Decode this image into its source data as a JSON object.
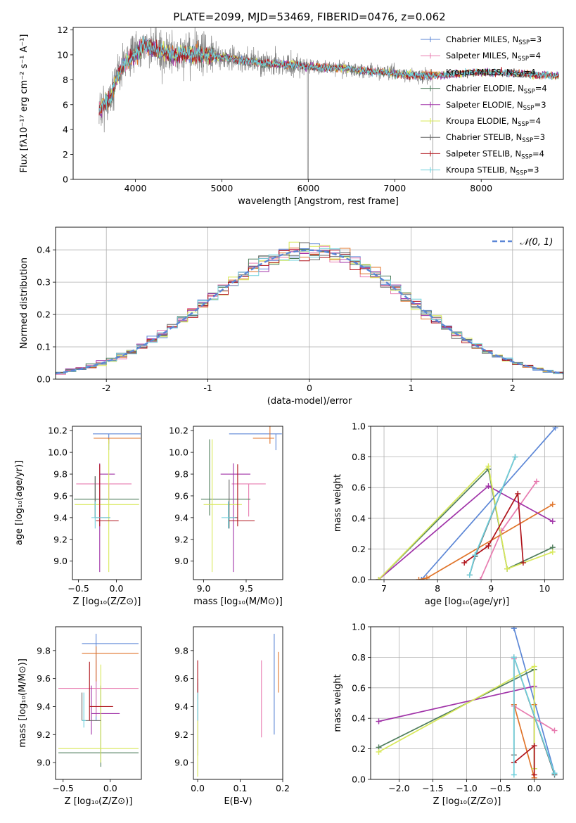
{
  "figure": {
    "title": "PLATE=2099, MJD=53469, FIBERID=0476, z=0.062"
  },
  "models": [
    {
      "name": "Chabrier MILES",
      "nssp": "3",
      "color": "#5b86d6"
    },
    {
      "name": "Salpeter MILES",
      "nssp": "4",
      "color": "#e87cb0"
    },
    {
      "name": "Kroupa MILES",
      "nssp": "4",
      "color": "#e0742a"
    },
    {
      "name": "Chabrier ELODIE",
      "nssp": "4",
      "color": "#4e7d5c"
    },
    {
      "name": "Salpeter ELODIE",
      "nssp": "3",
      "color": "#a033a8"
    },
    {
      "name": "Kroupa ELODIE",
      "nssp": "4",
      "color": "#d8e85a"
    },
    {
      "name": "Chabrier STELIB",
      "nssp": "3",
      "color": "#666666"
    },
    {
      "name": "Salpeter STELIB",
      "nssp": "4",
      "color": "#b0141c"
    },
    {
      "name": "Kroupa STELIB",
      "nssp": "3",
      "color": "#6fd0dc"
    }
  ],
  "chart_data": [
    {
      "id": "spectrum",
      "type": "line",
      "xlabel": "wavelength [Angstrom, rest frame]",
      "ylabel": "Flux [fλ10⁻¹⁷ erg cm⁻² s⁻¹ A⁻¹]",
      "xlim": [
        3280,
        8950
      ],
      "ylim": [
        0,
        12.2
      ],
      "xticks": [
        4000,
        5000,
        6000,
        7000,
        8000
      ],
      "yticks": [
        0,
        2,
        4,
        6,
        8,
        10,
        12
      ],
      "data_color": "#808080",
      "wavelength_range": [
        3580,
        7440
      ],
      "model_wavelength_range": [
        3580,
        8900
      ],
      "continuum_points": [
        [
          3580,
          5.6
        ],
        [
          3700,
          6.4
        ],
        [
          3800,
          8.4
        ],
        [
          3900,
          9.6
        ],
        [
          4000,
          10.0
        ],
        [
          4100,
          10.8
        ],
        [
          4300,
          10.2
        ],
        [
          4500,
          10.0
        ],
        [
          4700,
          10.1
        ],
        [
          4900,
          9.9
        ],
        [
          5200,
          9.6
        ],
        [
          5500,
          9.3
        ],
        [
          5800,
          9.2
        ],
        [
          6100,
          9.0
        ],
        [
          6400,
          8.9
        ],
        [
          6700,
          8.7
        ],
        [
          7000,
          8.5
        ],
        [
          7300,
          8.3
        ],
        [
          7600,
          8.4
        ],
        [
          8000,
          8.6
        ],
        [
          8400,
          8.5
        ],
        [
          8900,
          8.3
        ]
      ]
    },
    {
      "id": "residuals",
      "type": "histogram",
      "xlabel": "(data-model)/error",
      "ylabel": "Normed distribution",
      "xlim": [
        -2.5,
        2.5
      ],
      "ylim": [
        0,
        0.47
      ],
      "xticks": [
        -2,
        -1,
        0,
        1,
        2
      ],
      "yticks": [
        0.0,
        0.1,
        0.2,
        0.3,
        0.4
      ],
      "grid": true,
      "legend_label": "𝒩(0, 1)",
      "legend_position": "top-right",
      "normal_color": "#5b86d6",
      "bin_width": 0.1
    },
    {
      "id": "age-vs-Z",
      "type": "errorbar",
      "xlabel": "Z [log₁₀(Z/Z⊙)]",
      "ylabel": "age  [log₁₀(age/yr)]",
      "xlim": [
        -0.58,
        0.33
      ],
      "ylim": [
        8.83,
        10.24
      ],
      "xticks": [
        -0.5,
        0.0
      ],
      "yticks": [
        9.0,
        9.2,
        9.4,
        9.6,
        9.8,
        10.0,
        10.2
      ],
      "points": [
        {
          "x": -0.1,
          "y": 10.17,
          "xerr": [
            0.21,
            0.42
          ],
          "yerr": [
            0.15,
            0.0
          ]
        },
        {
          "x": -0.1,
          "y": 9.71,
          "xerr": [
            0.43,
            0.3
          ],
          "yerr": [
            0.15,
            0.0
          ]
        },
        {
          "x": -0.1,
          "y": 10.13,
          "xerr": [
            0.2,
            0.42
          ],
          "yerr": [
            0.05,
            0.0
          ]
        },
        {
          "x": -0.28,
          "y": 9.57,
          "xerr": [
            0.28,
            0.58
          ],
          "yerr": [
            0.17,
            0.21
          ]
        },
        {
          "x": -0.22,
          "y": 9.8,
          "xerr": [
            0.0,
            0.2
          ],
          "yerr": [
            0.9,
            0.1
          ]
        },
        {
          "x": -0.1,
          "y": 9.52,
          "xerr": [
            0.45,
            0.4
          ],
          "yerr": [
            0.62,
            0.6
          ]
        },
        {
          "x": -0.28,
          "y": 9.4,
          "xerr": [
            0.0,
            0.2
          ],
          "yerr": [
            0.0,
            0.38
          ]
        },
        {
          "x": -0.22,
          "y": 9.37,
          "xerr": [
            0.05,
            0.25
          ],
          "yerr": [
            0.05,
            0.52
          ]
        },
        {
          "x": -0.28,
          "y": 9.4,
          "xerr": [
            0.05,
            0.2
          ],
          "yerr": [
            0.1,
            0.15
          ]
        }
      ]
    },
    {
      "id": "age-vs-mass",
      "type": "errorbar",
      "xlabel": "mass [log₁₀(M/M⊙)]",
      "ylabel": "",
      "xlim": [
        8.88,
        9.93
      ],
      "ylim": [
        8.83,
        10.24
      ],
      "xticks": [
        9.0,
        9.5
      ],
      "yticks": [
        9.0,
        9.2,
        9.4,
        9.6,
        9.8,
        10.0,
        10.2
      ],
      "points": [
        {
          "x": 9.85,
          "y": 10.17,
          "xerr": [
            0.55,
            0.07
          ],
          "yerr": [
            0.15,
            0.0
          ]
        },
        {
          "x": 9.53,
          "y": 9.71,
          "xerr": [
            0.2,
            0.2
          ],
          "yerr": [
            0.3,
            0.0
          ]
        },
        {
          "x": 9.78,
          "y": 10.13,
          "xerr": [
            0.2,
            0.05
          ],
          "yerr": [
            0.05,
            0.15
          ]
        },
        {
          "x": 9.07,
          "y": 9.57,
          "xerr": [
            0.1,
            0.48
          ],
          "yerr": [
            0.15,
            0.55
          ]
        },
        {
          "x": 9.35,
          "y": 9.8,
          "xerr": [
            0.15,
            0.2
          ],
          "yerr": [
            0.9,
            0.1
          ]
        },
        {
          "x": 9.1,
          "y": 9.52,
          "xerr": [
            0.1,
            0.35
          ],
          "yerr": [
            0.62,
            0.6
          ]
        },
        {
          "x": 9.3,
          "y": 9.4,
          "xerr": [
            0.0,
            0.1
          ],
          "yerr": [
            0.1,
            0.35
          ]
        },
        {
          "x": 9.4,
          "y": 9.37,
          "xerr": [
            0.1,
            0.2
          ],
          "yerr": [
            0.05,
            0.52
          ]
        },
        {
          "x": 9.29,
          "y": 9.4,
          "xerr": [
            0.08,
            0.08
          ],
          "yerr": [
            0.1,
            0.15
          ]
        }
      ]
    },
    {
      "id": "massweight-vs-age",
      "type": "line",
      "xlabel": "age  [log₁₀(age/yr)]",
      "ylabel": "mass weight",
      "xlim": [
        6.75,
        10.35
      ],
      "ylim": [
        0,
        1.0
      ],
      "xticks": [
        7,
        8,
        9,
        10
      ],
      "yticks": [
        0.0,
        0.2,
        0.4,
        0.6,
        0.8,
        1.0
      ],
      "grid": true,
      "series": [
        {
          "points": [
            [
              7.7,
              0.0
            ],
            [
              10.2,
              0.99
            ]
          ]
        },
        {
          "points": [
            [
              8.8,
              0.0
            ],
            [
              9.2,
              0.32
            ],
            [
              9.85,
              0.64
            ]
          ]
        },
        {
          "points": [
            [
              7.65,
              0.0
            ],
            [
              7.8,
              0.01
            ],
            [
              10.15,
              0.49
            ]
          ]
        },
        {
          "points": [
            [
              6.9,
              0.0
            ],
            [
              8.95,
              0.72
            ],
            [
              9.3,
              0.07
            ],
            [
              10.15,
              0.21
            ]
          ]
        },
        {
          "points": [
            [
              6.9,
              0.0
            ],
            [
              8.95,
              0.61
            ],
            [
              10.15,
              0.38
            ]
          ]
        },
        {
          "points": [
            [
              6.9,
              0.0
            ],
            [
              8.95,
              0.74
            ],
            [
              9.3,
              0.07
            ],
            [
              10.15,
              0.18
            ]
          ]
        },
        {
          "points": [
            [
              8.6,
              0.03
            ],
            [
              8.7,
              0.15
            ],
            [
              9.45,
              0.8
            ]
          ]
        },
        {
          "points": [
            [
              8.5,
              0.11
            ],
            [
              8.95,
              0.22
            ],
            [
              9.5,
              0.56
            ],
            [
              9.6,
              0.11
            ]
          ]
        },
        {
          "points": [
            [
              8.6,
              0.03
            ],
            [
              8.7,
              0.16
            ],
            [
              9.45,
              0.8
            ]
          ]
        }
      ]
    },
    {
      "id": "mass-vs-Z",
      "type": "errorbar",
      "xlabel": "Z [log₁₀(Z/Z⊙)]",
      "ylabel": "mass [log₁₀(M/M⊙)]",
      "xlim": [
        -0.58,
        0.33
      ],
      "ylim": [
        8.88,
        9.97
      ],
      "xticks": [
        -0.5,
        0.0
      ],
      "yticks": [
        9.0,
        9.2,
        9.4,
        9.6,
        9.8
      ],
      "points": [
        {
          "x": -0.15,
          "y": 9.85,
          "xerr": [
            0.15,
            0.45
          ],
          "yerr": [
            0.55,
            0.07
          ]
        },
        {
          "x": -0.15,
          "y": 9.53,
          "xerr": [
            0.4,
            0.45
          ],
          "yerr": [
            0.2,
            0.2
          ]
        },
        {
          "x": -0.15,
          "y": 9.78,
          "xerr": [
            0.15,
            0.45
          ],
          "yerr": [
            0.2,
            0.05
          ]
        },
        {
          "x": -0.1,
          "y": 9.07,
          "xerr": [
            0.45,
            0.4
          ],
          "yerr": [
            0.1,
            0.48
          ]
        },
        {
          "x": -0.2,
          "y": 9.35,
          "xerr": [
            0.0,
            0.3
          ],
          "yerr": [
            0.15,
            0.2
          ]
        },
        {
          "x": -0.1,
          "y": 9.1,
          "xerr": [
            0.45,
            0.4
          ],
          "yerr": [
            0.1,
            0.6
          ]
        },
        {
          "x": -0.3,
          "y": 9.3,
          "xerr": [
            0.0,
            0.2
          ],
          "yerr": [
            0.0,
            0.2
          ]
        },
        {
          "x": -0.22,
          "y": 9.4,
          "xerr": [
            0.0,
            0.25
          ],
          "yerr": [
            0.1,
            0.32
          ]
        },
        {
          "x": -0.28,
          "y": 9.3,
          "xerr": [
            0.02,
            0.02
          ],
          "yerr": [
            0.05,
            0.2
          ]
        }
      ]
    },
    {
      "id": "mass-vs-EBV",
      "type": "errorbar",
      "xlabel": "E(B-V)",
      "ylabel": "",
      "xlim": [
        -0.01,
        0.2
      ],
      "ylim": [
        8.88,
        9.97
      ],
      "xticks": [
        0.0,
        0.1,
        0.2
      ],
      "yticks": [
        9.0,
        9.2,
        9.4,
        9.6,
        9.8
      ],
      "points": [
        {
          "x": 0.18,
          "y": 9.55,
          "xerr": [
            0,
            0
          ],
          "yerr": [
            0.35,
            0.37
          ]
        },
        {
          "x": 0.15,
          "y": 9.45,
          "xerr": [
            0,
            0
          ],
          "yerr": [
            0.27,
            0.28
          ]
        },
        {
          "x": 0.19,
          "y": 9.65,
          "xerr": [
            0,
            0
          ],
          "yerr": [
            0.15,
            0.14
          ]
        },
        {
          "x": 0.0,
          "y": 9.3,
          "xerr": [
            0,
            0
          ],
          "yerr": [
            0.25,
            0.3
          ]
        },
        {
          "x": 0.0,
          "y": 9.32,
          "xerr": [
            0,
            0
          ],
          "yerr": [
            0.27,
            0.25
          ]
        },
        {
          "x": 0.0,
          "y": 9.1,
          "xerr": [
            0,
            0
          ],
          "yerr": [
            0.2,
            0.4
          ]
        },
        {
          "x": 0.0,
          "y": 9.4,
          "xerr": [
            0,
            0
          ],
          "yerr": [
            0.1,
            0.2
          ]
        },
        {
          "x": 0.0,
          "y": 9.55,
          "xerr": [
            0,
            0
          ],
          "yerr": [
            0.1,
            0.18
          ]
        },
        {
          "x": 0.0,
          "y": 9.35,
          "xerr": [
            0,
            0
          ],
          "yerr": [
            0.05,
            0.15
          ]
        }
      ]
    },
    {
      "id": "massweight-vs-Z",
      "type": "line",
      "xlabel": "Z [log₁₀(Z/Z⊙)]",
      "ylabel": "mass weight",
      "xlim": [
        -2.42,
        0.43
      ],
      "ylim": [
        0,
        1.0
      ],
      "xticks": [
        -2.0,
        -1.5,
        -1.0,
        -0.5,
        0.0
      ],
      "yticks": [
        0.0,
        0.2,
        0.4,
        0.6,
        0.8,
        1.0
      ],
      "grid": true,
      "series": [
        {
          "points": [
            [
              -0.3,
              0.99
            ],
            [
              0.3,
              0.04
            ]
          ]
        },
        {
          "points": [
            [
              -0.3,
              0.79
            ],
            [
              -0.3,
              0.48
            ],
            [
              0.3,
              0.32
            ]
          ]
        },
        {
          "points": [
            [
              -0.3,
              0.49
            ],
            [
              0.0,
              0.01
            ],
            [
              0.0,
              0.49
            ]
          ]
        },
        {
          "points": [
            [
              -2.3,
              0.21
            ],
            [
              0.0,
              0.72
            ],
            [
              0.0,
              0.07
            ]
          ]
        },
        {
          "points": [
            [
              -2.3,
              0.38
            ],
            [
              0.0,
              0.61
            ]
          ]
        },
        {
          "points": [
            [
              -2.3,
              0.18
            ],
            [
              0.0,
              0.74
            ],
            [
              0.0,
              0.07
            ]
          ]
        },
        {
          "points": [
            [
              -0.3,
              0.16
            ],
            [
              -0.3,
              0.8
            ],
            [
              0.3,
              0.03
            ]
          ]
        },
        {
          "points": [
            [
              -0.3,
              0.11
            ],
            [
              0.0,
              0.22
            ],
            [
              0.0,
              0.03
            ]
          ]
        },
        {
          "points": [
            [
              -0.3,
              0.03
            ],
            [
              -0.3,
              0.8
            ],
            [
              0.3,
              0.04
            ]
          ]
        }
      ]
    }
  ]
}
